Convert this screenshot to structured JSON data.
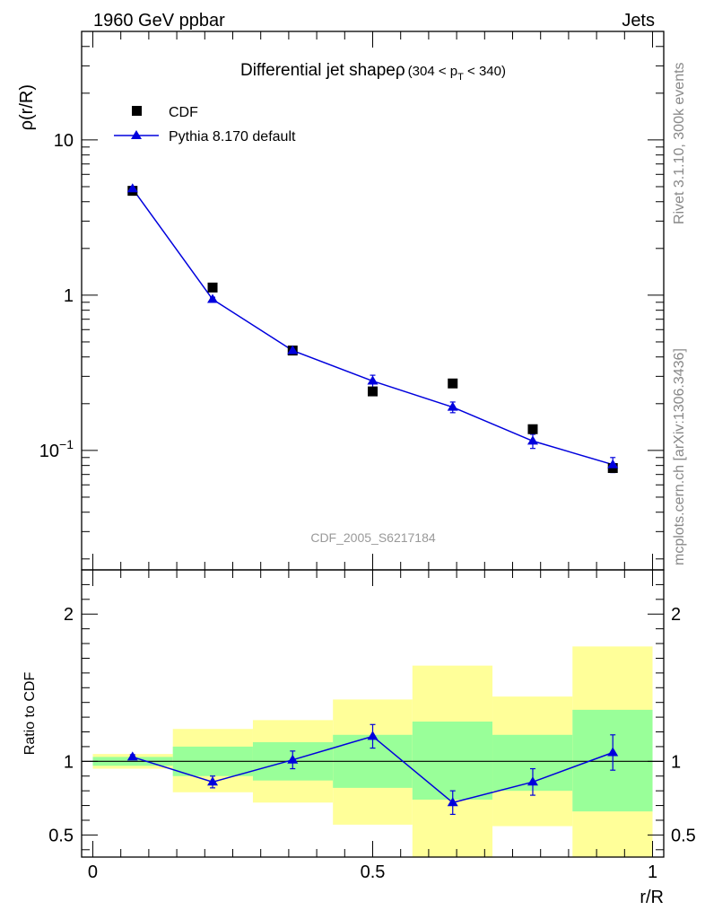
{
  "header": {
    "left": "1960 GeV ppbar",
    "right": "Jets"
  },
  "side_labels": {
    "rivet": "Rivet 3.1.10,  300k events",
    "mcplots": "mcplots.cern.ch [arXiv:1306.3436]"
  },
  "analysis_id": "CDF_2005_S6217184",
  "chart_data": [
    {
      "type": "scatter",
      "panel": "main",
      "title_main": "Differential jet shape",
      "title_symbol": "ρ",
      "title_range_prefix": "(304 < p",
      "title_range_sub": "T",
      "title_range_suffix": " < 340)",
      "ylabel": "ρ(r/R)",
      "xlabel": "",
      "xlim": [
        -0.02,
        1.02
      ],
      "ylim": [
        0.017,
        50
      ],
      "y_scale": "log",
      "y_ticks": [
        {
          "value": 10,
          "label": "10",
          "sup": ""
        },
        {
          "value": 1,
          "label": "1",
          "sup": ""
        },
        {
          "value": 0.1,
          "label": "10",
          "sup": "−1"
        }
      ],
      "legend_position": "top-left",
      "series": [
        {
          "name": "CDF",
          "marker": "square",
          "color": "#000000",
          "x": [
            0.071,
            0.214,
            0.357,
            0.5,
            0.643,
            0.786,
            0.929
          ],
          "y": [
            4.7,
            1.12,
            0.44,
            0.24,
            0.27,
            0.137,
            0.077
          ]
        },
        {
          "name": "Pythia 8.170 default",
          "marker": "triangle",
          "color": "#0000dd",
          "x": [
            0.071,
            0.214,
            0.357,
            0.5,
            0.643,
            0.786,
            0.929
          ],
          "y": [
            4.85,
            0.94,
            0.44,
            0.28,
            0.19,
            0.115,
            0.081
          ],
          "y_err": [
            0.15,
            0.03,
            0.015,
            0.025,
            0.015,
            0.012,
            0.009
          ]
        }
      ]
    },
    {
      "type": "line",
      "panel": "ratio",
      "ylabel": "Ratio to CDF",
      "xlabel": "r/R",
      "xlim": [
        -0.02,
        1.02
      ],
      "ylim": [
        0.35,
        2.3
      ],
      "x_ticks": [
        {
          "value": 0,
          "label": "0"
        },
        {
          "value": 0.5,
          "label": "0.5"
        },
        {
          "value": 1,
          "label": "1"
        }
      ],
      "y_ticks": [
        {
          "value": 0.5,
          "label": "0.5"
        },
        {
          "value": 1,
          "label": "1"
        },
        {
          "value": 2,
          "label": "2"
        }
      ],
      "reference_line": 1,
      "bands": {
        "bins": [
          [
            0,
            0.143
          ],
          [
            0.143,
            0.286
          ],
          [
            0.286,
            0.429
          ],
          [
            0.429,
            0.571
          ],
          [
            0.571,
            0.714
          ],
          [
            0.714,
            0.857
          ],
          [
            0.857,
            1.0
          ]
        ],
        "inner_low": [
          0.97,
          0.9,
          0.87,
          0.82,
          0.74,
          0.8,
          0.66
        ],
        "inner_high": [
          1.03,
          1.1,
          1.13,
          1.18,
          1.27,
          1.18,
          1.35
        ],
        "outer_low": [
          0.95,
          0.79,
          0.72,
          0.57,
          0.3,
          0.56,
          0.3
        ],
        "outer_high": [
          1.05,
          1.22,
          1.28,
          1.42,
          1.65,
          1.44,
          1.78
        ],
        "inner_color": "#99ff99",
        "outer_color": "#ffff99"
      },
      "series": [
        {
          "name": "Pythia 8.170 default",
          "color": "#0000dd",
          "x": [
            0.071,
            0.214,
            0.357,
            0.5,
            0.643,
            0.786,
            0.929
          ],
          "y": [
            1.03,
            0.86,
            1.01,
            1.17,
            0.72,
            0.86,
            1.06
          ],
          "y_err": [
            0.015,
            0.04,
            0.06,
            0.08,
            0.08,
            0.09,
            0.12
          ]
        }
      ]
    }
  ]
}
